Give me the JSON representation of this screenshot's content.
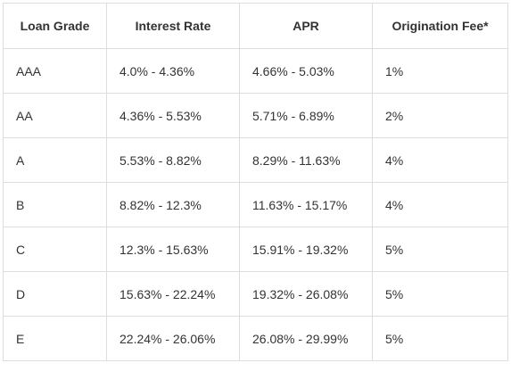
{
  "table": {
    "headers": [
      "Loan Grade",
      "Interest Rate",
      "APR",
      "Origination Fee*"
    ],
    "rows": [
      [
        "AAA",
        "4.0% - 4.36%",
        "4.66% - 5.03%",
        "1%"
      ],
      [
        "AA",
        "4.36% - 5.53%",
        "5.71% - 6.89%",
        "2%"
      ],
      [
        "A",
        "5.53% - 8.82%",
        "8.29% - 11.63%",
        "4%"
      ],
      [
        "B",
        "8.82% - 12.3%",
        "11.63% - 15.17%",
        "4%"
      ],
      [
        "C",
        "12.3% - 15.63%",
        "15.91% - 19.32%",
        "5%"
      ],
      [
        "D",
        "15.63% - 22.24%",
        "19.32% - 26.08%",
        "5%"
      ],
      [
        "E",
        "22.24% - 26.06%",
        "26.08% - 29.99%",
        "5%"
      ]
    ]
  }
}
